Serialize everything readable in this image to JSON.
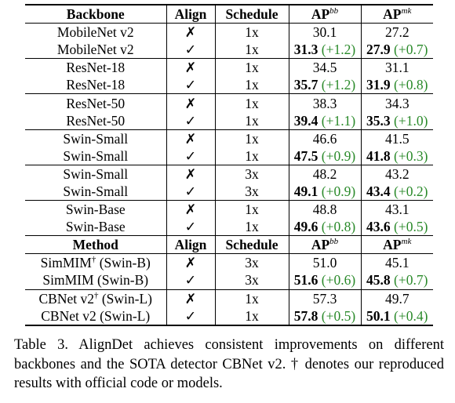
{
  "table": {
    "header": [
      "Backbone",
      "Align",
      "Schedule",
      "AP",
      "AP"
    ],
    "ap_sup": [
      "bb",
      "mk"
    ],
    "rows": [
      {
        "name": "MobileNet v2",
        "align": "✗",
        "schedule": "1x",
        "ap_bb": "30.1",
        "ap_bb_gain": "",
        "ap_mk": "27.2",
        "ap_mk_gain": ""
      },
      {
        "name": "MobileNet v2",
        "align": "✓",
        "schedule": "1x",
        "ap_bb": "31.3",
        "ap_bb_gain": "(+1.2)",
        "ap_mk": "27.9",
        "ap_mk_gain": "(+0.7)"
      },
      {
        "name": "ResNet-18",
        "align": "✗",
        "schedule": "1x",
        "ap_bb": "34.5",
        "ap_bb_gain": "",
        "ap_mk": "31.1",
        "ap_mk_gain": ""
      },
      {
        "name": "ResNet-18",
        "align": "✓",
        "schedule": "1x",
        "ap_bb": "35.7",
        "ap_bb_gain": "(+1.2)",
        "ap_mk": "31.9",
        "ap_mk_gain": "(+0.8)"
      },
      {
        "name": "ResNet-50",
        "align": "✗",
        "schedule": "1x",
        "ap_bb": "38.3",
        "ap_bb_gain": "",
        "ap_mk": "34.3",
        "ap_mk_gain": ""
      },
      {
        "name": "ResNet-50",
        "align": "✓",
        "schedule": "1x",
        "ap_bb": "39.4",
        "ap_bb_gain": "(+1.1)",
        "ap_mk": "35.3",
        "ap_mk_gain": "(+1.0)"
      },
      {
        "name": "Swin-Small",
        "align": "✗",
        "schedule": "1x",
        "ap_bb": "46.6",
        "ap_bb_gain": "",
        "ap_mk": "41.5",
        "ap_mk_gain": ""
      },
      {
        "name": "Swin-Small",
        "align": "✓",
        "schedule": "1x",
        "ap_bb": "47.5",
        "ap_bb_gain": "(+0.9)",
        "ap_mk": "41.8",
        "ap_mk_gain": "(+0.3)"
      },
      {
        "name": "Swin-Small",
        "align": "✗",
        "schedule": "3x",
        "ap_bb": "48.2",
        "ap_bb_gain": "",
        "ap_mk": "43.2",
        "ap_mk_gain": ""
      },
      {
        "name": "Swin-Small",
        "align": "✓",
        "schedule": "3x",
        "ap_bb": "49.1",
        "ap_bb_gain": "(+0.9)",
        "ap_mk": "43.4",
        "ap_mk_gain": "(+0.2)"
      },
      {
        "name": "Swin-Base",
        "align": "✗",
        "schedule": "1x",
        "ap_bb": "48.8",
        "ap_bb_gain": "",
        "ap_mk": "43.1",
        "ap_mk_gain": ""
      },
      {
        "name": "Swin-Base",
        "align": "✓",
        "schedule": "1x",
        "ap_bb": "49.6",
        "ap_bb_gain": "(+0.8)",
        "ap_mk": "43.6",
        "ap_mk_gain": "(+0.5)"
      }
    ],
    "method_header": [
      "Method",
      "Align",
      "Schedule",
      "AP",
      "AP"
    ],
    "method_rows": [
      {
        "name": "SimMIM",
        "dagger": "†",
        "suffix": " (Swin-B)",
        "align": "✗",
        "schedule": "3x",
        "ap_bb": "51.0",
        "ap_bb_gain": "",
        "ap_mk": "45.1",
        "ap_mk_gain": ""
      },
      {
        "name": "SimMIM",
        "dagger": "",
        "suffix": " (Swin-B)",
        "align": "✓",
        "schedule": "3x",
        "ap_bb": "51.6",
        "ap_bb_gain": "(+0.6)",
        "ap_mk": "45.8",
        "ap_mk_gain": "(+0.7)"
      },
      {
        "name": "CBNet v2",
        "dagger": "†",
        "suffix": " (Swin-L)",
        "align": "✗",
        "schedule": "1x",
        "ap_bb": "57.3",
        "ap_bb_gain": "",
        "ap_mk": "49.7",
        "ap_mk_gain": ""
      },
      {
        "name": "CBNet v2",
        "dagger": "",
        "suffix": " (Swin-L)",
        "align": "✓",
        "schedule": "1x",
        "ap_bb": "57.8",
        "ap_bb_gain": "(+0.5)",
        "ap_mk": "50.1",
        "ap_mk_gain": "(+0.4)"
      }
    ]
  },
  "caption": "Table 3. AlignDet achieves consistent improvements on different backbones and the SOTA detector CBNet v2. † denotes our reproduced results with official code or models.",
  "colors": {
    "gain": "#2a8a2a"
  }
}
